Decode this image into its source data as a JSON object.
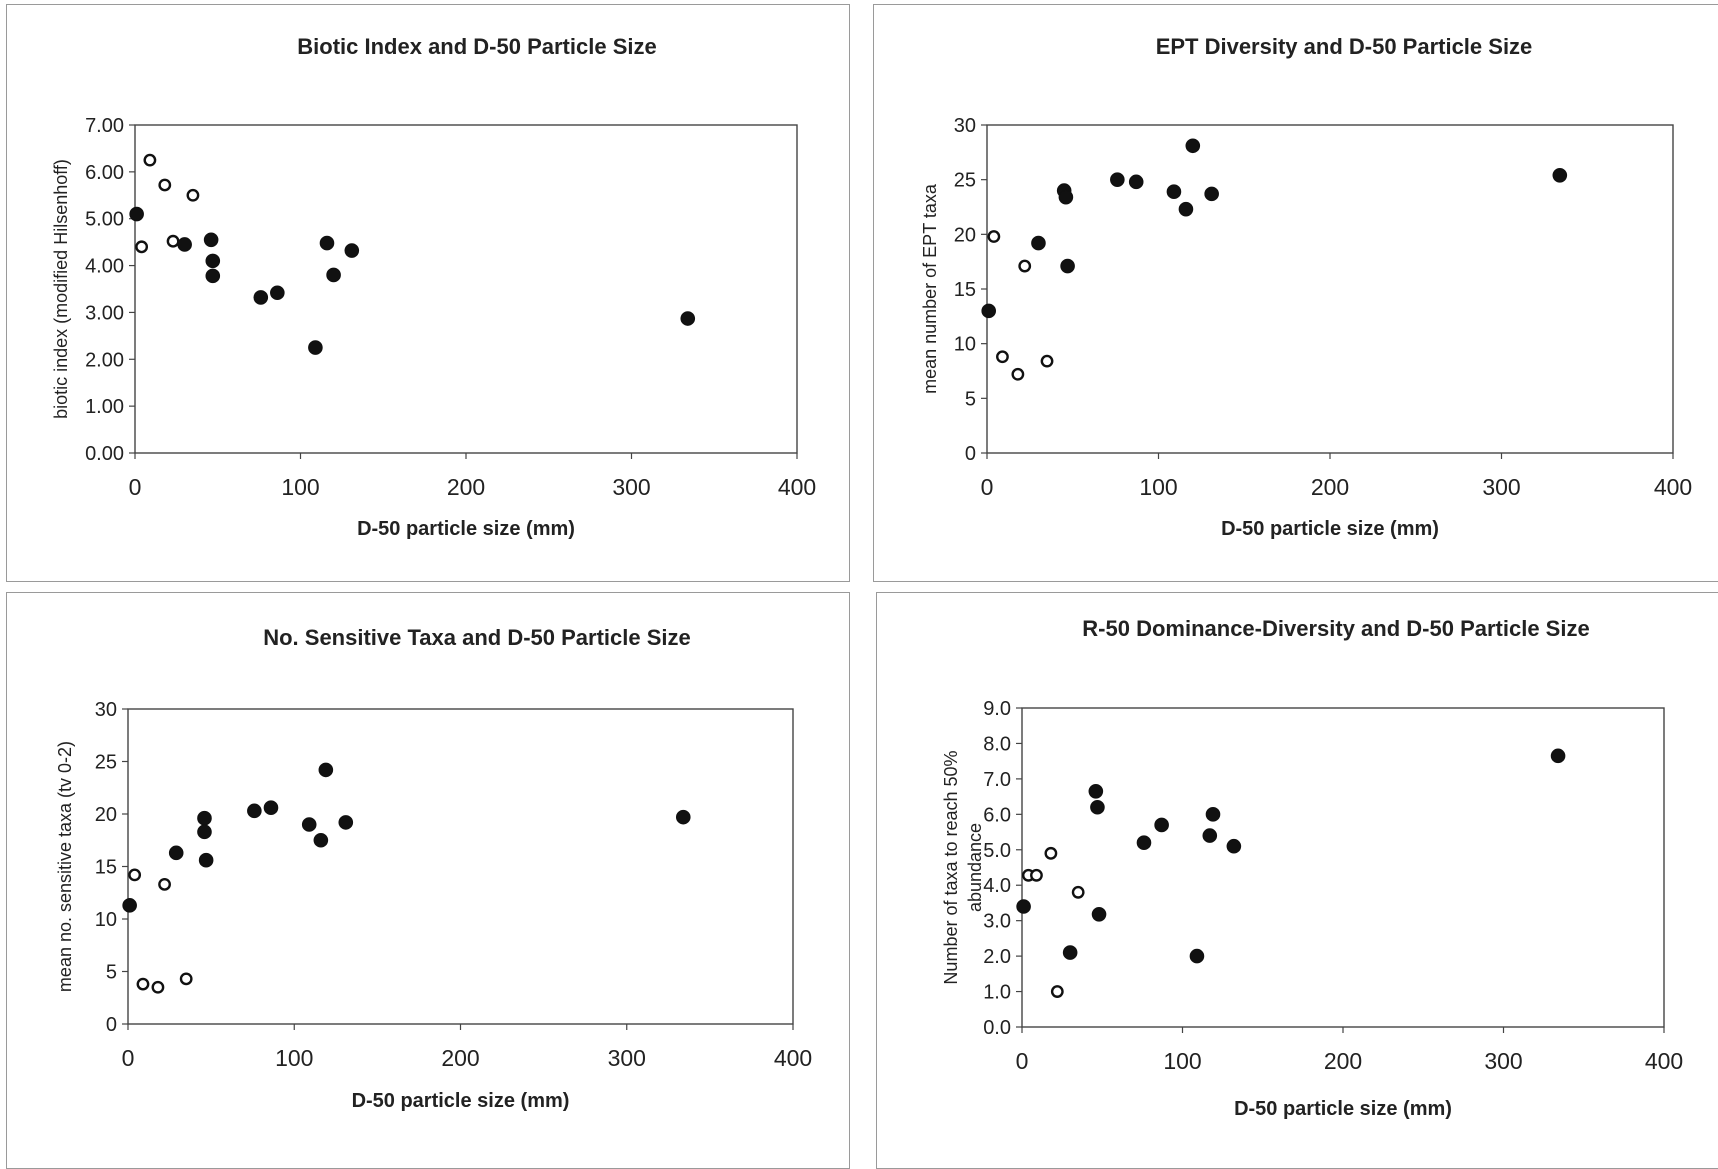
{
  "chart_data": [
    {
      "type": "scatter",
      "title": "Biotic Index and D-50 Particle Size",
      "xlabel": "D-50 particle size (mm)",
      "ylabel": "biotic index (modified Hilsenhoff)",
      "xlim": [
        0,
        400
      ],
      "ylim": [
        0,
        7
      ],
      "x_ticks": [
        "0",
        "100",
        "200",
        "300",
        "400"
      ],
      "y_ticks": [
        "0.00",
        "1.00",
        "2.00",
        "3.00",
        "4.00",
        "5.00",
        "6.00",
        "7.00"
      ],
      "grid": false,
      "legend": "none",
      "series": [
        {
          "marker": "open-circle",
          "x": [
            4,
            9,
            18,
            23,
            35
          ],
          "y": [
            4.4,
            6.25,
            5.72,
            4.52,
            5.5
          ]
        },
        {
          "marker": "filled-circle",
          "x": [
            1,
            30,
            46,
            47,
            47,
            76,
            86,
            109,
            116,
            120,
            131,
            334
          ],
          "y": [
            5.1,
            4.45,
            4.55,
            4.1,
            3.78,
            3.32,
            3.42,
            2.25,
            4.48,
            3.8,
            4.32,
            2.87
          ]
        }
      ]
    },
    {
      "type": "scatter",
      "title": "EPT Diversity and D-50 Particle Size",
      "xlabel": "D-50 particle size (mm)",
      "ylabel": "mean number of EPT taxa",
      "xlim": [
        0,
        400
      ],
      "ylim": [
        0,
        30
      ],
      "x_ticks": [
        "0",
        "100",
        "200",
        "300",
        "400"
      ],
      "y_ticks": [
        "0",
        "5",
        "10",
        "15",
        "20",
        "25",
        "30"
      ],
      "grid": false,
      "legend": "none",
      "series": [
        {
          "marker": "open-circle",
          "x": [
            4,
            9,
            18,
            22,
            35
          ],
          "y": [
            19.8,
            8.8,
            7.2,
            17.1,
            8.4
          ]
        },
        {
          "marker": "filled-circle",
          "x": [
            1,
            30,
            45,
            46,
            47,
            76,
            87,
            109,
            116,
            120,
            131,
            334
          ],
          "y": [
            13,
            19.2,
            24,
            23.4,
            17.1,
            25,
            24.8,
            23.9,
            22.3,
            28.1,
            23.7,
            25.4
          ]
        }
      ]
    },
    {
      "type": "scatter",
      "title": "No. Sensitive Taxa and D-50 Particle Size",
      "xlabel": "D-50 particle size (mm)",
      "ylabel": "mean no. sensitive taxa (tv 0-2)",
      "xlim": [
        0,
        400
      ],
      "ylim": [
        0,
        30
      ],
      "x_ticks": [
        "0",
        "100",
        "200",
        "300",
        "400"
      ],
      "y_ticks": [
        "0",
        "5",
        "10",
        "15",
        "20",
        "25",
        "30"
      ],
      "grid": false,
      "legend": "none",
      "series": [
        {
          "marker": "open-circle",
          "x": [
            4,
            9,
            18,
            22,
            35
          ],
          "y": [
            14.2,
            3.8,
            3.5,
            13.3,
            4.3
          ]
        },
        {
          "marker": "filled-circle",
          "x": [
            1,
            29,
            46,
            46,
            47,
            76,
            86,
            109,
            116,
            119,
            131,
            334
          ],
          "y": [
            11.3,
            16.3,
            19.6,
            18.3,
            15.6,
            20.3,
            20.6,
            19,
            17.5,
            24.2,
            19.2,
            19.7
          ]
        }
      ]
    },
    {
      "type": "scatter",
      "title": "R-50 Dominance-Diversity and D-50 Particle Size",
      "xlabel": "D-50 particle size (mm)",
      "ylabel": "Number of taxa to reach 50% abundance",
      "xlim": [
        0,
        400
      ],
      "ylim": [
        0,
        9
      ],
      "x_ticks": [
        "0",
        "100",
        "200",
        "300",
        "400"
      ],
      "y_ticks": [
        "0.0",
        "1.0",
        "2.0",
        "3.0",
        "4.0",
        "5.0",
        "6.0",
        "7.0",
        "8.0",
        "9.0"
      ],
      "grid": false,
      "legend": "none",
      "series": [
        {
          "marker": "open-circle",
          "x": [
            4,
            9,
            18,
            22,
            35
          ],
          "y": [
            4.28,
            4.28,
            4.9,
            1.0,
            3.8
          ]
        },
        {
          "marker": "filled-circle",
          "x": [
            1,
            30,
            46,
            47,
            48,
            76,
            87,
            109,
            117,
            119,
            132,
            334
          ],
          "y": [
            3.4,
            2.1,
            6.65,
            6.2,
            3.18,
            5.2,
            5.7,
            2.0,
            5.4,
            6.0,
            5.1,
            7.65
          ]
        }
      ]
    }
  ]
}
